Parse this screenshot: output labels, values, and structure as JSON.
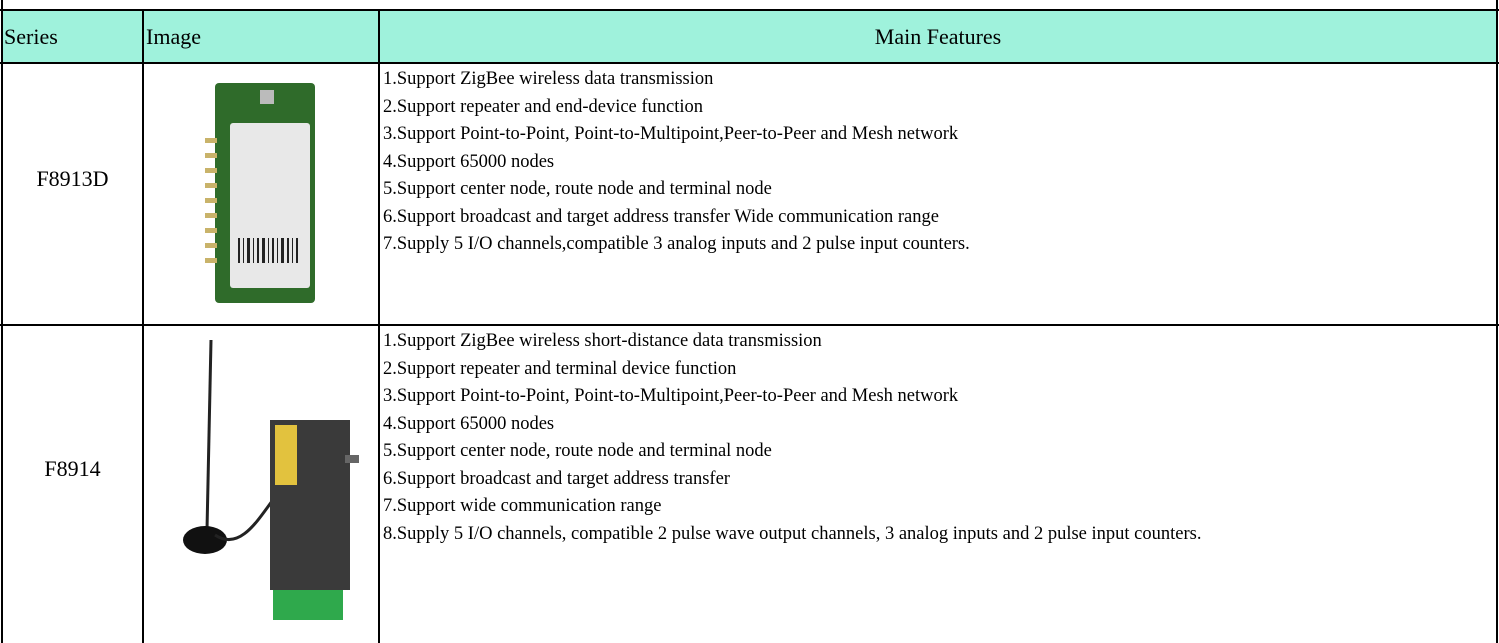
{
  "table": {
    "headers": [
      "Series",
      "Image",
      "Main Features"
    ],
    "rows": [
      {
        "series": "F8913D",
        "features": [
          "1.Support ZigBee wireless data transmission",
          "2.Support repeater and end-device function",
          "3.Support Point-to-Point, Point-to-Multipoint,Peer-to-Peer and Mesh network",
          "4.Support 65000 nodes",
          "5.Support center node, route node and terminal node",
          "6.Support broadcast and target address transfer Wide communication range",
          "7.Supply 5 I/O channels,compatible 3 analog inputs and 2 pulse input counters."
        ]
      },
      {
        "series": "F8914",
        "features": [
          "1.Support ZigBee wireless short-distance data transmission",
          "2.Support repeater and terminal device function",
          "3.Support Point-to-Point, Point-to-Multipoint,Peer-to-Peer and Mesh network",
          "4.Support 65000 nodes",
          "5.Support center node, route node and terminal node",
          "6.Support broadcast and target address transfer",
          "7.Support wide communication range",
          "8.Supply 5 I/O channels, compatible 2 pulse wave output channels, 3 analog inputs and 2 pulse input counters."
        ]
      }
    ]
  }
}
